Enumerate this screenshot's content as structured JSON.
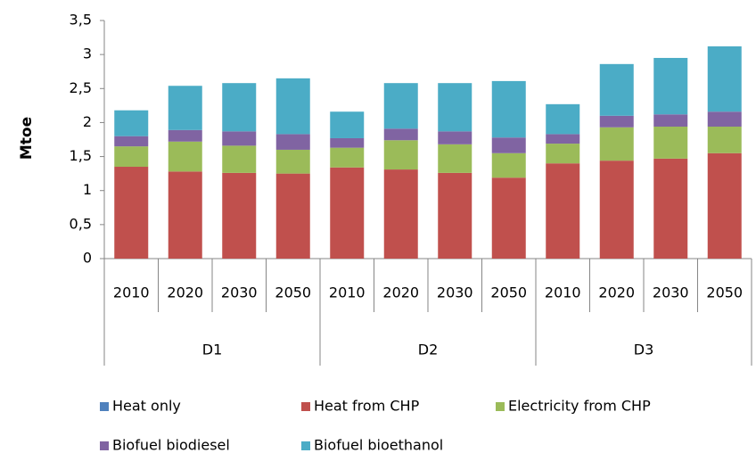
{
  "chart_data": {
    "type": "stacked_bar",
    "y_label": "Mtoe",
    "groups": [
      "D1",
      "D2",
      "D3"
    ],
    "categories": [
      "2010",
      "2020",
      "2030",
      "2050",
      "2010",
      "2020",
      "2030",
      "2050",
      "2010",
      "2020",
      "2030",
      "2050"
    ],
    "series": [
      {
        "name": "Heat only",
        "color": "#4f81bd",
        "values": [
          0,
          0,
          0,
          0,
          0,
          0,
          0,
          0,
          0,
          0,
          0,
          0
        ]
      },
      {
        "name": "Heat from CHP",
        "color": "#c0504d",
        "values": [
          1.35,
          1.28,
          1.26,
          1.25,
          1.34,
          1.31,
          1.26,
          1.19,
          1.4,
          1.44,
          1.47,
          1.55
        ]
      },
      {
        "name": "Electricity from CHP",
        "color": "#9bbb59",
        "values": [
          0.3,
          0.44,
          0.4,
          0.35,
          0.29,
          0.43,
          0.42,
          0.36,
          0.29,
          0.49,
          0.47,
          0.39
        ]
      },
      {
        "name": "Biofuel biodiesel",
        "color": "#8064a2",
        "values": [
          0.15,
          0.17,
          0.21,
          0.23,
          0.14,
          0.17,
          0.19,
          0.23,
          0.14,
          0.17,
          0.18,
          0.22
        ]
      },
      {
        "name": "Biofuel bioethanol",
        "color": "#4bacc6",
        "values": [
          0.38,
          0.65,
          0.71,
          0.82,
          0.39,
          0.67,
          0.71,
          0.83,
          0.44,
          0.76,
          0.83,
          0.96
        ]
      }
    ],
    "ylim": [
      0,
      3.5
    ],
    "yticks": [
      0,
      {
        "value": 0.5,
        "label": "0,5"
      },
      1,
      {
        "value": 1.5,
        "label": "1,5"
      },
      2,
      {
        "value": 2.5,
        "label": "2,5"
      },
      3,
      {
        "value": 3.5,
        "label": "3,5"
      }
    ],
    "grid": false
  }
}
